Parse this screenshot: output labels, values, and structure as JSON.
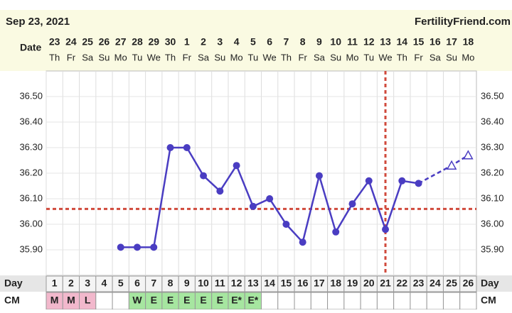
{
  "chart_data": {
    "type": "line",
    "date_text": "Sep 23, 2021",
    "site": "FertilityFriend.com",
    "date_label": "Date",
    "day_label": "Day",
    "cm_label": "CM",
    "dates": [
      "23",
      "24",
      "25",
      "26",
      "27",
      "28",
      "29",
      "30",
      "1",
      "2",
      "3",
      "4",
      "5",
      "6",
      "7",
      "8",
      "9",
      "10",
      "11",
      "12",
      "13",
      "14",
      "15",
      "16",
      "17",
      "18"
    ],
    "weekdays": [
      "Th",
      "Fr",
      "Sa",
      "Su",
      "Mo",
      "Tu",
      "We",
      "Th",
      "Fr",
      "Sa",
      "Su",
      "Mo",
      "Tu",
      "We",
      "Th",
      "Fr",
      "Sa",
      "Su",
      "Mo",
      "Tu",
      "We",
      "Th",
      "Fr",
      "Sa",
      "Su",
      "Mo"
    ],
    "days": [
      1,
      2,
      3,
      4,
      5,
      6,
      7,
      8,
      9,
      10,
      11,
      12,
      13,
      14,
      15,
      16,
      17,
      18,
      19,
      20,
      21,
      22,
      23,
      24,
      25,
      26
    ],
    "cm": [
      "M",
      "M",
      "L",
      null,
      null,
      "W",
      "E",
      "E",
      "E",
      "E",
      "E",
      "E*",
      "E*",
      null,
      null,
      null,
      null,
      null,
      null,
      null,
      null,
      null,
      null,
      null,
      null,
      null
    ],
    "cm_colors": {
      "M": "#f2b8cc",
      "L": "#f2b8cc",
      "W": "#a6e6a0",
      "E": "#a6e6a0",
      "E*": "#a6e6a0"
    },
    "series": [
      {
        "color": "#4a3dc2",
        "marker": "circle",
        "dashed": false,
        "x": [
          5,
          6,
          7,
          8,
          9,
          10,
          11,
          12,
          13,
          14,
          15,
          16,
          17,
          18,
          19,
          20,
          21,
          22,
          23
        ],
        "values": [
          35.91,
          35.91,
          35.91,
          36.3,
          36.3,
          36.19,
          36.13,
          36.23,
          36.07,
          36.1,
          36.0,
          35.93,
          36.19,
          35.97,
          36.08,
          36.17,
          35.98,
          36.17,
          36.16
        ]
      },
      {
        "color": "#4a3dc2",
        "marker": "triangle",
        "dashed": true,
        "x": [
          23,
          25,
          26
        ],
        "values": [
          36.16,
          36.23,
          36.27
        ]
      }
    ],
    "coverline": 36.06,
    "ovulation_day": 21,
    "reference_color": "#d04a3c",
    "ylim": [
      35.8,
      36.6
    ],
    "yticks": [
      {
        "value": 35.9,
        "label": "35.90"
      },
      {
        "value": 36.0,
        "label": "36.00"
      },
      {
        "value": 36.1,
        "label": "36.10"
      },
      {
        "value": 36.2,
        "label": "36.20"
      },
      {
        "value": 36.3,
        "label": "36.30"
      },
      {
        "value": 36.4,
        "label": "36.40"
      },
      {
        "value": 36.5,
        "label": "36.50"
      }
    ],
    "grid": true
  }
}
